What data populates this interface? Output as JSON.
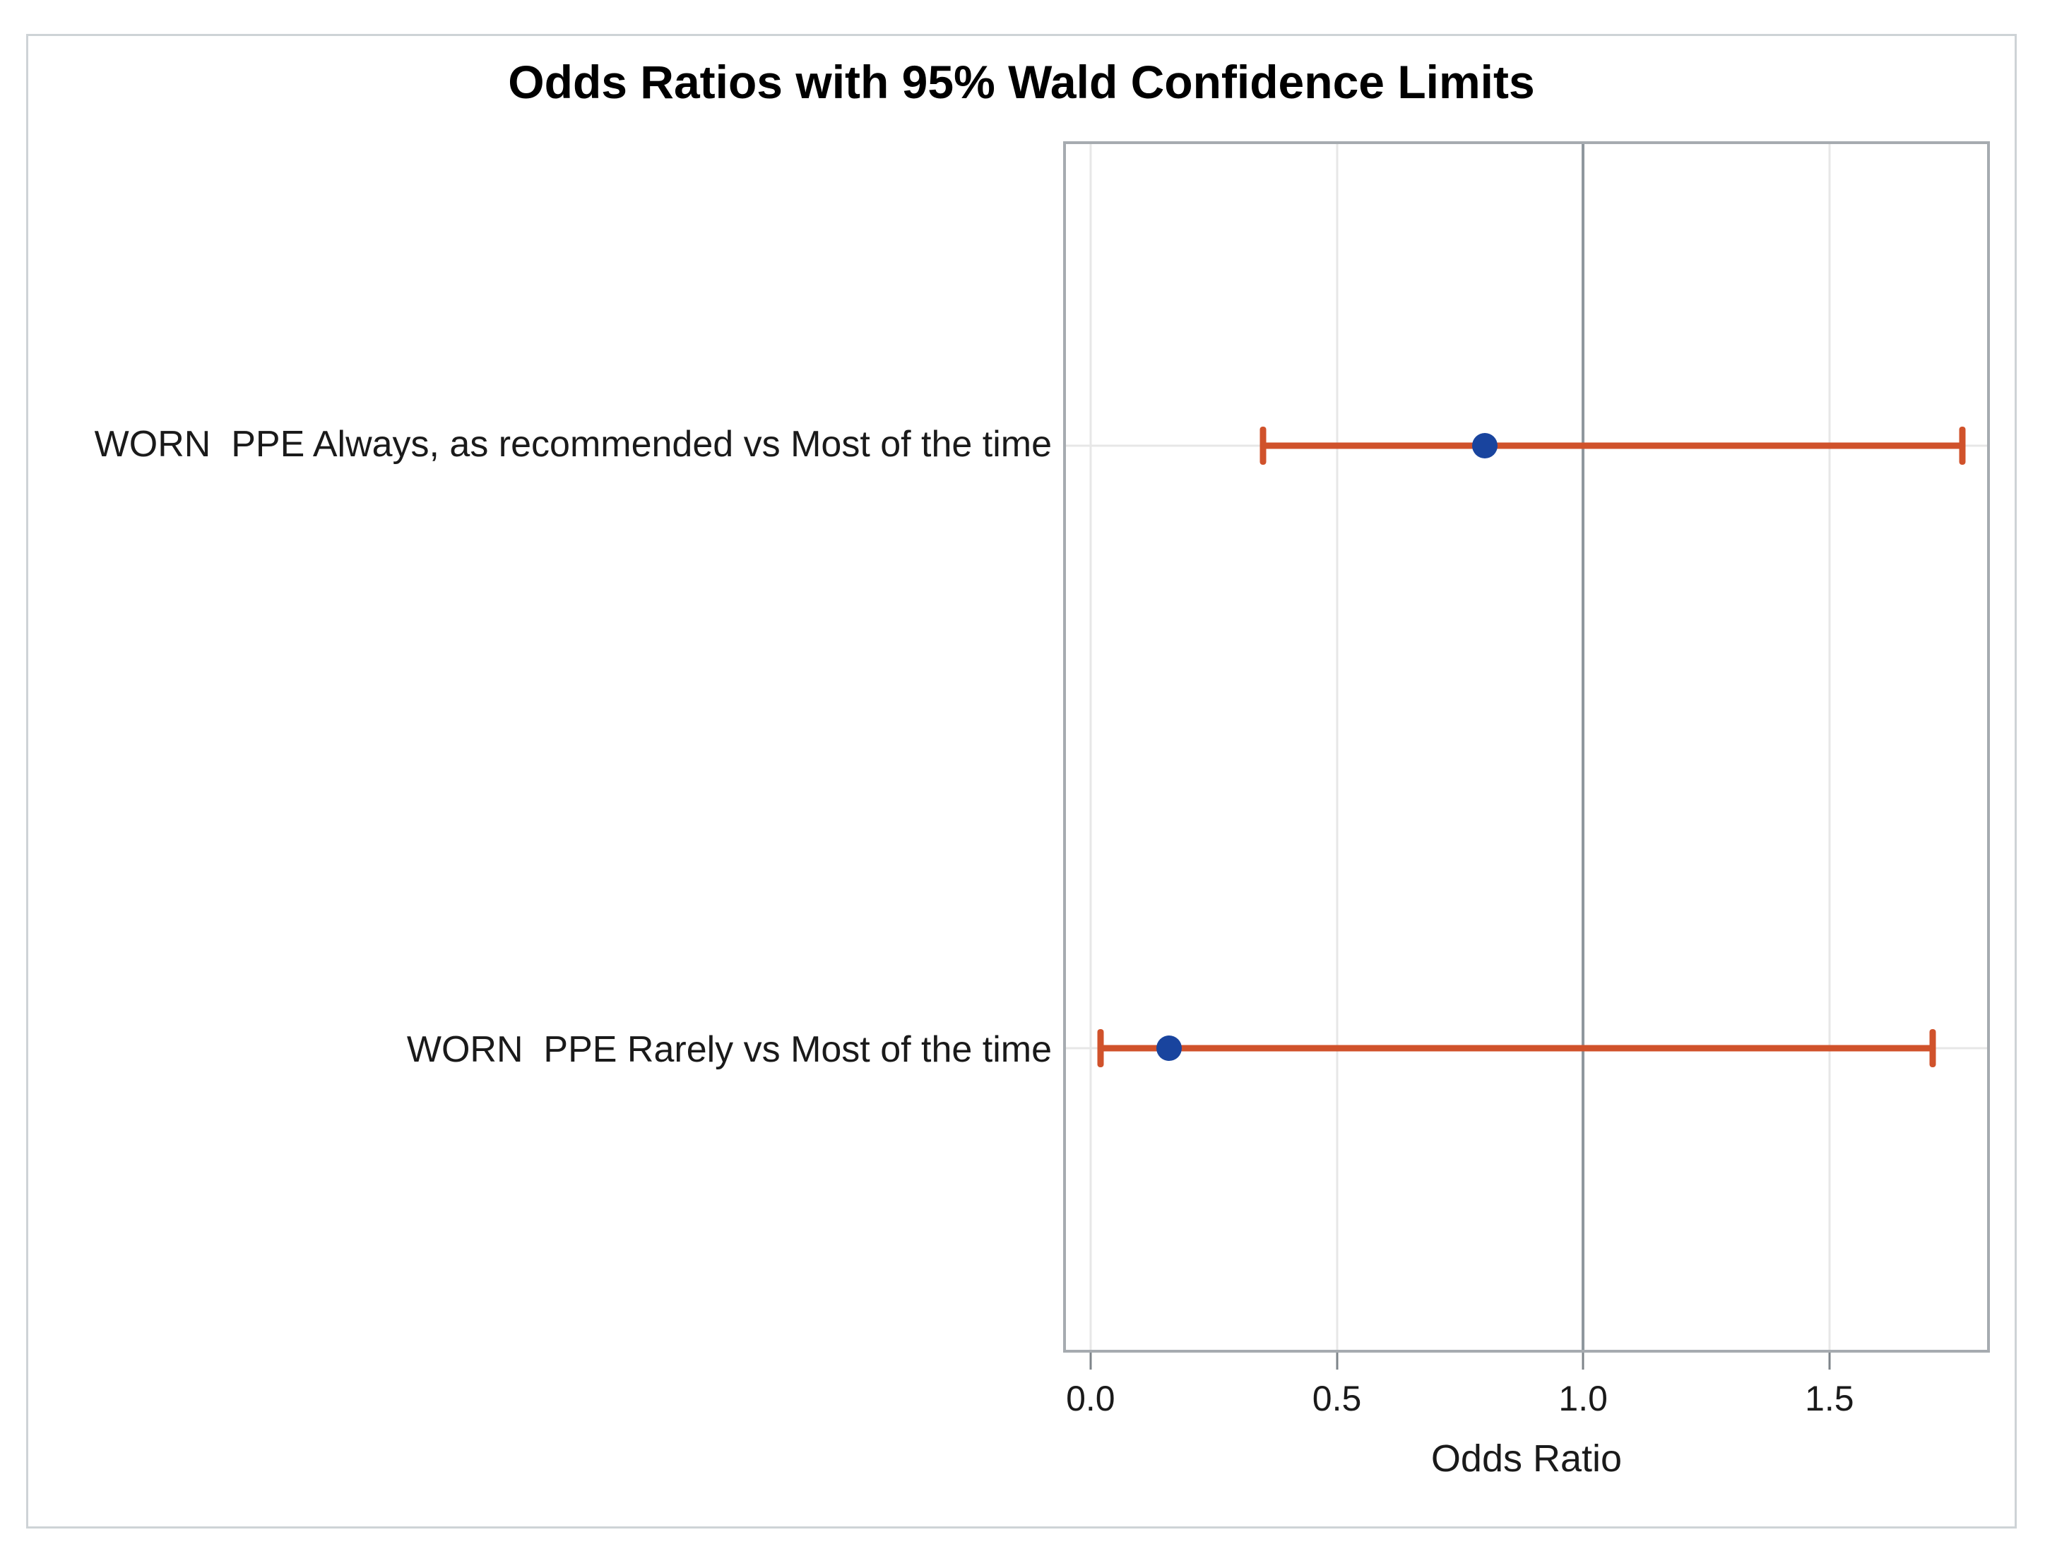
{
  "chart_data": {
    "type": "scatter",
    "variant": "odds-ratio-forest-plot-with-error-bars",
    "title": "Odds Ratios with 95% Wald Confidence Limits",
    "xlabel": "Odds Ratio",
    "rows": [
      {
        "label": "WORN  PPE Always, as recommended vs Most of the time",
        "odds_ratio": 0.8,
        "lower_cl": 0.35,
        "upper_cl": 1.77
      },
      {
        "label": "WORN  PPE Rarely vs Most of the time",
        "odds_ratio": 0.16,
        "lower_cl": 0.02,
        "upper_cl": 1.71
      }
    ],
    "xticks": [
      0.0,
      0.5,
      1.0,
      1.5
    ],
    "xtick_labels": [
      "0.0",
      "0.5",
      "1.0",
      "1.5"
    ],
    "xlim": [
      -0.05,
      1.82
    ],
    "refline_x": 1.0,
    "grid": true,
    "legend_position": "none",
    "colors": {
      "marker_blue": "#19449e",
      "ci_line_orange": "#d0522b",
      "gridline": "#e7e7e7",
      "reference_line": "#8f979e",
      "wall_border": "#a6abb0",
      "frame_border": "#ced3d6",
      "tick": "#7e848a",
      "text": "#1a1a1a",
      "title": "#000000"
    }
  }
}
